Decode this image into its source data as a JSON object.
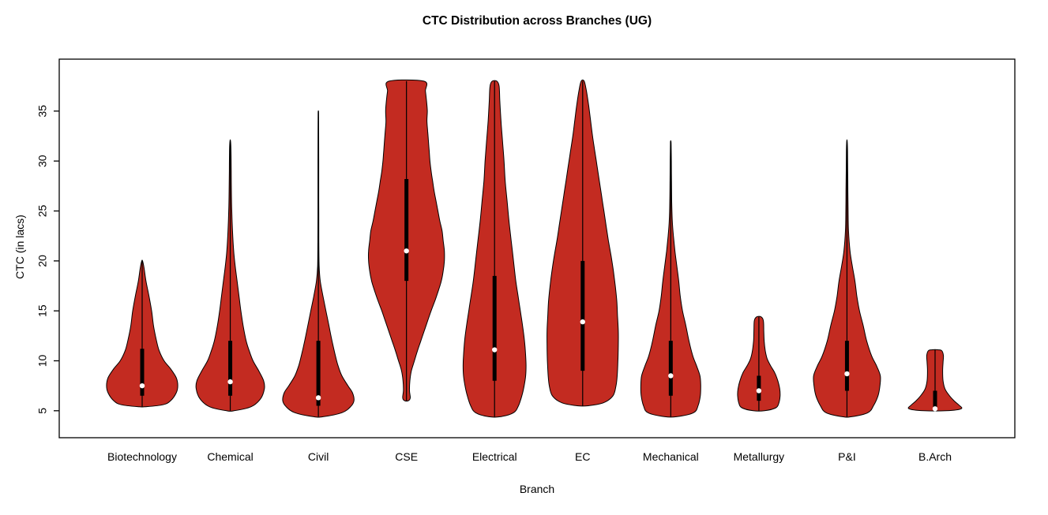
{
  "chart_data": {
    "type": "violin",
    "title": "CTC Distribution across Branches (UG)",
    "xlabel": "Branch",
    "ylabel": "CTC (in lacs)",
    "ylim": [
      2.3,
      40.2
    ],
    "yticks": [
      5,
      10,
      15,
      20,
      25,
      30,
      35
    ],
    "grid": false,
    "legend": "none",
    "violin_fill": "#C32B21",
    "violin_stroke": "#000000",
    "box_color": "#000000",
    "median_dot_color": "#ffffff",
    "categories": [
      "Biotechnology",
      "Chemical",
      "Civil",
      "CSE",
      "Electrical",
      "EC",
      "Mechanical",
      "Metallurgy",
      "P&I",
      "B.Arch"
    ],
    "series": [
      {
        "name": "Biotechnology",
        "min": 5.4,
        "max": 20,
        "q1": 6.5,
        "median": 7.5,
        "q3": 11.2,
        "density": [
          [
            5.4,
            0.1
          ],
          [
            5.6,
            0.55
          ],
          [
            6.0,
            0.75
          ],
          [
            6.8,
            0.9
          ],
          [
            7.5,
            0.94
          ],
          [
            8.3,
            0.9
          ],
          [
            9.2,
            0.75
          ],
          [
            10,
            0.58
          ],
          [
            11,
            0.45
          ],
          [
            12,
            0.38
          ],
          [
            13.5,
            0.3
          ],
          [
            15,
            0.25
          ],
          [
            16.5,
            0.18
          ],
          [
            18,
            0.1
          ],
          [
            19.3,
            0.05
          ],
          [
            20,
            0.01
          ]
        ]
      },
      {
        "name": "Chemical",
        "min": 5.0,
        "max": 32,
        "q1": 6.5,
        "median": 7.9,
        "q3": 12,
        "density": [
          [
            5.0,
            0.1
          ],
          [
            5.4,
            0.55
          ],
          [
            6.2,
            0.8
          ],
          [
            7.2,
            0.9
          ],
          [
            8.0,
            0.88
          ],
          [
            9,
            0.75
          ],
          [
            10,
            0.6
          ],
          [
            11,
            0.5
          ],
          [
            12,
            0.42
          ],
          [
            13.5,
            0.34
          ],
          [
            15,
            0.28
          ],
          [
            16.5,
            0.23
          ],
          [
            18,
            0.18
          ],
          [
            19.5,
            0.13
          ],
          [
            21,
            0.09
          ],
          [
            23,
            0.06
          ],
          [
            25,
            0.04
          ],
          [
            27,
            0.03
          ],
          [
            29,
            0.025
          ],
          [
            31,
            0.02
          ],
          [
            32,
            0.008
          ]
        ]
      },
      {
        "name": "Civil",
        "min": 4.4,
        "max": 35,
        "q1": 5.5,
        "median": 6.3,
        "q3": 12,
        "density": [
          [
            4.4,
            0.12
          ],
          [
            4.8,
            0.62
          ],
          [
            5.4,
            0.85
          ],
          [
            6.0,
            0.94
          ],
          [
            6.8,
            0.9
          ],
          [
            7.5,
            0.78
          ],
          [
            8.5,
            0.62
          ],
          [
            9.5,
            0.52
          ],
          [
            10.5,
            0.45
          ],
          [
            12,
            0.36
          ],
          [
            13.5,
            0.28
          ],
          [
            15,
            0.2
          ],
          [
            16.5,
            0.12
          ],
          [
            18,
            0.05
          ],
          [
            19.5,
            0.02
          ],
          [
            22,
            0.013
          ],
          [
            26,
            0.011
          ],
          [
            30,
            0.01
          ],
          [
            33,
            0.009
          ],
          [
            34.8,
            0.006
          ],
          [
            35,
            0.002
          ]
        ]
      },
      {
        "name": "CSE",
        "min": 6.0,
        "max": 38,
        "q1": 18,
        "median": 21,
        "q3": 28.2,
        "density": [
          [
            6.0,
            0.05
          ],
          [
            6.3,
            0.1
          ],
          [
            7,
            0.08
          ],
          [
            8,
            0.09
          ],
          [
            9,
            0.13
          ],
          [
            10,
            0.21
          ],
          [
            11,
            0.29
          ],
          [
            12,
            0.38
          ],
          [
            13,
            0.47
          ],
          [
            14,
            0.56
          ],
          [
            15,
            0.65
          ],
          [
            16,
            0.75
          ],
          [
            17,
            0.84
          ],
          [
            18,
            0.92
          ],
          [
            19,
            0.97
          ],
          [
            20,
            1.0
          ],
          [
            21,
            1.0
          ],
          [
            22,
            0.97
          ],
          [
            23,
            0.94
          ],
          [
            24,
            0.88
          ],
          [
            25,
            0.83
          ],
          [
            26,
            0.78
          ],
          [
            27,
            0.73
          ],
          [
            28,
            0.69
          ],
          [
            29,
            0.65
          ],
          [
            30,
            0.62
          ],
          [
            31,
            0.6
          ],
          [
            32,
            0.58
          ],
          [
            33,
            0.56
          ],
          [
            34,
            0.54
          ],
          [
            35,
            0.55
          ],
          [
            36,
            0.53
          ],
          [
            37,
            0.5
          ],
          [
            38,
            0.46
          ]
        ]
      },
      {
        "name": "Electrical",
        "min": 4.4,
        "max": 38,
        "q1": 8,
        "median": 11.1,
        "q3": 18.5,
        "density": [
          [
            4.4,
            0.15
          ],
          [
            4.8,
            0.5
          ],
          [
            5.5,
            0.63
          ],
          [
            6.5,
            0.72
          ],
          [
            7.5,
            0.78
          ],
          [
            8.5,
            0.82
          ],
          [
            9.5,
            0.83
          ],
          [
            10.5,
            0.82
          ],
          [
            12,
            0.79
          ],
          [
            13.5,
            0.74
          ],
          [
            15,
            0.68
          ],
          [
            16.5,
            0.62
          ],
          [
            18,
            0.56
          ],
          [
            20,
            0.5
          ],
          [
            22,
            0.44
          ],
          [
            24,
            0.38
          ],
          [
            26,
            0.33
          ],
          [
            28,
            0.28
          ],
          [
            30,
            0.25
          ],
          [
            32,
            0.21
          ],
          [
            34,
            0.17
          ],
          [
            36,
            0.14
          ],
          [
            37.5,
            0.12
          ],
          [
            38,
            0.06
          ]
        ]
      },
      {
        "name": "EC",
        "min": 5.5,
        "max": 38,
        "q1": 9,
        "median": 13.9,
        "q3": 20,
        "density": [
          [
            5.5,
            0.15
          ],
          [
            5.8,
            0.55
          ],
          [
            6.5,
            0.8
          ],
          [
            7.5,
            0.88
          ],
          [
            8.5,
            0.91
          ],
          [
            10,
            0.93
          ],
          [
            11.5,
            0.94
          ],
          [
            13,
            0.94
          ],
          [
            14.5,
            0.92
          ],
          [
            16,
            0.9
          ],
          [
            17.5,
            0.86
          ],
          [
            19,
            0.81
          ],
          [
            20.5,
            0.75
          ],
          [
            22,
            0.68
          ],
          [
            23.5,
            0.62
          ],
          [
            25,
            0.56
          ],
          [
            26.5,
            0.5
          ],
          [
            28,
            0.44
          ],
          [
            29.5,
            0.38
          ],
          [
            31,
            0.32
          ],
          [
            32.5,
            0.26
          ],
          [
            34,
            0.21
          ],
          [
            35.5,
            0.16
          ],
          [
            37,
            0.1
          ],
          [
            38,
            0.04
          ]
        ]
      },
      {
        "name": "Mechanical",
        "min": 4.4,
        "max": 32,
        "q1": 6.5,
        "median": 8.5,
        "q3": 12,
        "density": [
          [
            4.4,
            0.15
          ],
          [
            4.8,
            0.6
          ],
          [
            5.5,
            0.72
          ],
          [
            6.5,
            0.78
          ],
          [
            7.5,
            0.79
          ],
          [
            8.5,
            0.77
          ],
          [
            9.5,
            0.68
          ],
          [
            10.5,
            0.58
          ],
          [
            12,
            0.48
          ],
          [
            13.5,
            0.4
          ],
          [
            15,
            0.31
          ],
          [
            16.5,
            0.25
          ],
          [
            18,
            0.21
          ],
          [
            19.5,
            0.16
          ],
          [
            21,
            0.11
          ],
          [
            22.5,
            0.07
          ],
          [
            24,
            0.04
          ],
          [
            26,
            0.025
          ],
          [
            28,
            0.02
          ],
          [
            30,
            0.015
          ],
          [
            31.7,
            0.01
          ],
          [
            32,
            0.004
          ]
        ]
      },
      {
        "name": "Metallurgy",
        "min": 5.0,
        "max": 14.4,
        "q1": 6,
        "median": 7,
        "q3": 8.5,
        "density": [
          [
            5.0,
            0.15
          ],
          [
            5.3,
            0.45
          ],
          [
            5.8,
            0.53
          ],
          [
            6.5,
            0.56
          ],
          [
            7.2,
            0.55
          ],
          [
            8,
            0.5
          ],
          [
            8.8,
            0.42
          ],
          [
            9.5,
            0.31
          ],
          [
            10.2,
            0.22
          ],
          [
            11,
            0.17
          ],
          [
            12,
            0.14
          ],
          [
            13,
            0.13
          ],
          [
            14,
            0.12
          ],
          [
            14.4,
            0.06
          ]
        ]
      },
      {
        "name": "P&I",
        "min": 4.4,
        "max": 32,
        "q1": 7,
        "median": 8.7,
        "q3": 12,
        "density": [
          [
            4.4,
            0.12
          ],
          [
            4.8,
            0.55
          ],
          [
            5.5,
            0.7
          ],
          [
            6.5,
            0.82
          ],
          [
            7.5,
            0.87
          ],
          [
            8.5,
            0.88
          ],
          [
            9.5,
            0.78
          ],
          [
            10.5,
            0.65
          ],
          [
            12,
            0.52
          ],
          [
            13.5,
            0.43
          ],
          [
            15,
            0.33
          ],
          [
            16.5,
            0.26
          ],
          [
            18,
            0.21
          ],
          [
            19.5,
            0.14
          ],
          [
            21,
            0.08
          ],
          [
            23,
            0.04
          ],
          [
            25,
            0.03
          ],
          [
            27,
            0.025
          ],
          [
            29,
            0.02
          ],
          [
            31,
            0.015
          ],
          [
            32,
            0.006
          ]
        ]
      },
      {
        "name": "B.Arch",
        "min": 5.0,
        "max": 11.1,
        "q1": 5,
        "median": 5.2,
        "q3": 7,
        "density": [
          [
            5.0,
            0.3
          ],
          [
            5.2,
            0.69
          ],
          [
            5.6,
            0.62
          ],
          [
            6.0,
            0.5
          ],
          [
            6.6,
            0.36
          ],
          [
            7.2,
            0.26
          ],
          [
            8,
            0.21
          ],
          [
            9,
            0.2
          ],
          [
            9.8,
            0.21
          ],
          [
            10.5,
            0.22
          ],
          [
            11.0,
            0.18
          ],
          [
            11.1,
            0.08
          ]
        ]
      }
    ]
  }
}
